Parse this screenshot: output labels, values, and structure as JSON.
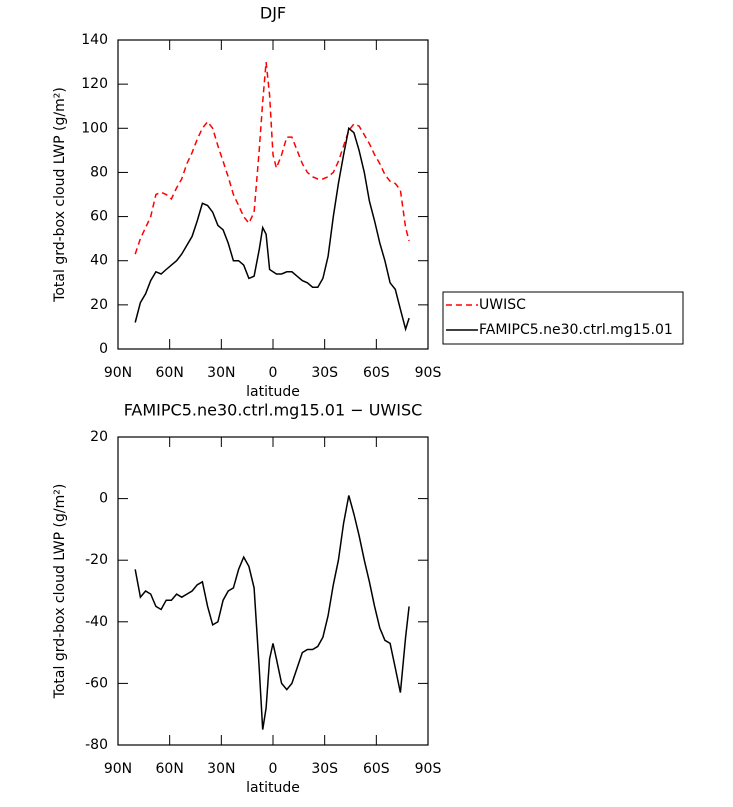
{
  "chart_data": [
    {
      "type": "line",
      "title": "DJF",
      "xlabel": "latitude",
      "ylabel": "Total grd-box cloud LWP (g/m²)",
      "x": [
        80,
        77,
        74,
        71,
        68,
        65,
        62,
        59,
        56,
        53,
        50,
        47,
        44,
        41,
        38,
        35,
        32,
        29,
        26,
        23,
        20,
        17,
        14,
        11,
        8,
        6,
        4,
        2,
        0,
        -2,
        -5,
        -8,
        -11,
        -14,
        -17,
        -20,
        -23,
        -26,
        -29,
        -32,
        -35,
        -38,
        -41,
        -44,
        -47,
        -50,
        -53,
        -56,
        -59,
        -62,
        -65,
        -68,
        -71,
        -74,
        -77,
        -79
      ],
      "xlim": [
        90,
        -90
      ],
      "xticks": [
        {
          "value": 90,
          "label": "90N"
        },
        {
          "value": 60,
          "label": "60N"
        },
        {
          "value": 30,
          "label": "30N"
        },
        0,
        {
          "value": -30,
          "label": "30S"
        },
        {
          "value": -60,
          "label": "60S"
        },
        {
          "value": -90,
          "label": "90S"
        }
      ],
      "ylim": [
        0,
        140
      ],
      "yticks": [
        0,
        20,
        40,
        60,
        80,
        100,
        120,
        140
      ],
      "legend": "right",
      "series": [
        {
          "name": "UWISC",
          "color": "#ff0000",
          "dashed": true,
          "values": [
            43,
            50,
            55,
            60,
            70,
            71,
            70,
            68,
            73,
            77,
            84,
            89,
            95,
            100,
            103,
            100,
            92,
            85,
            78,
            70,
            65,
            60,
            57,
            62,
            90,
            112,
            130,
            115,
            88,
            82,
            88,
            96,
            96,
            90,
            84,
            80,
            78,
            77,
            77,
            78,
            80,
            85,
            92,
            99,
            102,
            101,
            97,
            93,
            88,
            84,
            79,
            76,
            75,
            72,
            55,
            49
          ]
        },
        {
          "name": "FAMIPC5.ne30.ctrl.mg15.01",
          "color": "#000000",
          "dashed": false,
          "values": [
            12,
            21,
            25,
            31,
            35,
            34,
            36,
            38,
            40,
            43,
            47,
            51,
            58,
            66,
            65,
            62,
            56,
            54,
            48,
            40,
            40,
            38,
            32,
            33,
            45,
            55,
            52,
            36,
            35,
            34,
            34,
            35,
            35,
            33,
            31,
            30,
            28,
            28,
            32,
            42,
            60,
            75,
            88,
            100,
            98,
            90,
            80,
            67,
            58,
            48,
            40,
            30,
            27,
            18,
            9,
            14
          ]
        }
      ]
    },
    {
      "type": "line",
      "title": "FAMIPC5.ne30.ctrl.mg15.01 − UWISC",
      "xlabel": "latitude",
      "ylabel": "Total grd-box cloud LWP (g/m²)",
      "x": [
        80,
        77,
        74,
        71,
        68,
        65,
        62,
        59,
        56,
        53,
        50,
        47,
        44,
        41,
        38,
        35,
        32,
        29,
        26,
        23,
        20,
        17,
        14,
        11,
        8,
        6,
        4,
        2,
        0,
        -2,
        -5,
        -8,
        -11,
        -14,
        -17,
        -20,
        -23,
        -26,
        -29,
        -32,
        -35,
        -38,
        -41,
        -44,
        -47,
        -50,
        -53,
        -56,
        -59,
        -62,
        -65,
        -68,
        -71,
        -74,
        -77,
        -79
      ],
      "xlim": [
        90,
        -90
      ],
      "xticks": [
        {
          "value": 90,
          "label": "90N"
        },
        {
          "value": 60,
          "label": "60N"
        },
        {
          "value": 30,
          "label": "30N"
        },
        0,
        {
          "value": -30,
          "label": "30S"
        },
        {
          "value": -60,
          "label": "60S"
        },
        {
          "value": -90,
          "label": "90S"
        }
      ],
      "ylim": [
        -80,
        20
      ],
      "yticks": [
        -80,
        -60,
        -40,
        -20,
        0,
        20
      ],
      "series": [
        {
          "color": "#000000",
          "dashed": false,
          "values": [
            -23,
            -32,
            -30,
            -31,
            -35,
            -36,
            -33,
            -33,
            -31,
            -32,
            -31,
            -30,
            -28,
            -27,
            -35,
            -41,
            -40,
            -33,
            -30,
            -29,
            -23,
            -19,
            -22,
            -29,
            -55,
            -75,
            -68,
            -52,
            -47,
            -52,
            -60,
            -62,
            -60,
            -55,
            -50,
            -49,
            -49,
            -48,
            -45,
            -38,
            -28,
            -20,
            -8,
            1,
            -5,
            -12,
            -20,
            -27,
            -35,
            -42,
            -46,
            -47,
            -55,
            -63,
            -45,
            -35
          ]
        }
      ]
    }
  ]
}
